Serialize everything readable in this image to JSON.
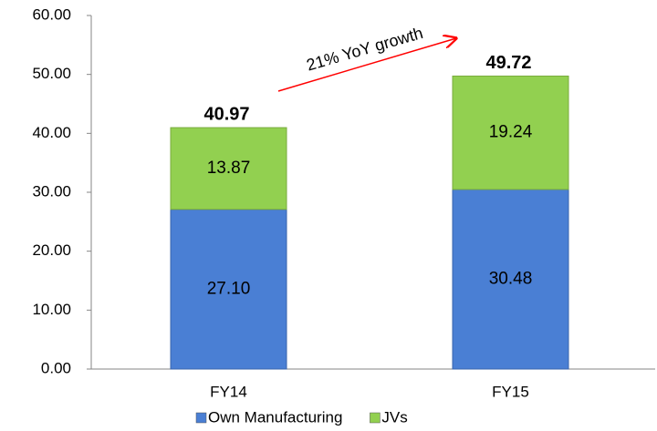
{
  "chart_data": {
    "type": "stacked_bar",
    "categories": [
      "FY14",
      "FY15"
    ],
    "series": [
      {
        "name": "Own Manufacturing",
        "color": "#4a7fd4",
        "values": [
          27.1,
          30.48
        ],
        "value_labels": [
          "27.10",
          "30.48"
        ]
      },
      {
        "name": "JVs",
        "color": "#92d050",
        "values": [
          13.87,
          19.24
        ],
        "value_labels": [
          "13.87",
          "19.24"
        ]
      }
    ],
    "totals": [
      40.97,
      49.72
    ],
    "annotation": "21% YoY growth",
    "ylim": [
      0,
      60
    ],
    "yticks": [
      {
        "value": 0,
        "label": "0.00"
      },
      {
        "value": 10,
        "label": "10.00"
      },
      {
        "value": 20,
        "label": "20.00"
      },
      {
        "value": 30,
        "label": "30.00"
      },
      {
        "value": 40,
        "label": "40.00"
      },
      {
        "value": 50,
        "label": "50.00"
      },
      {
        "value": 60,
        "label": "60.00"
      }
    ],
    "legend": "bottom"
  }
}
